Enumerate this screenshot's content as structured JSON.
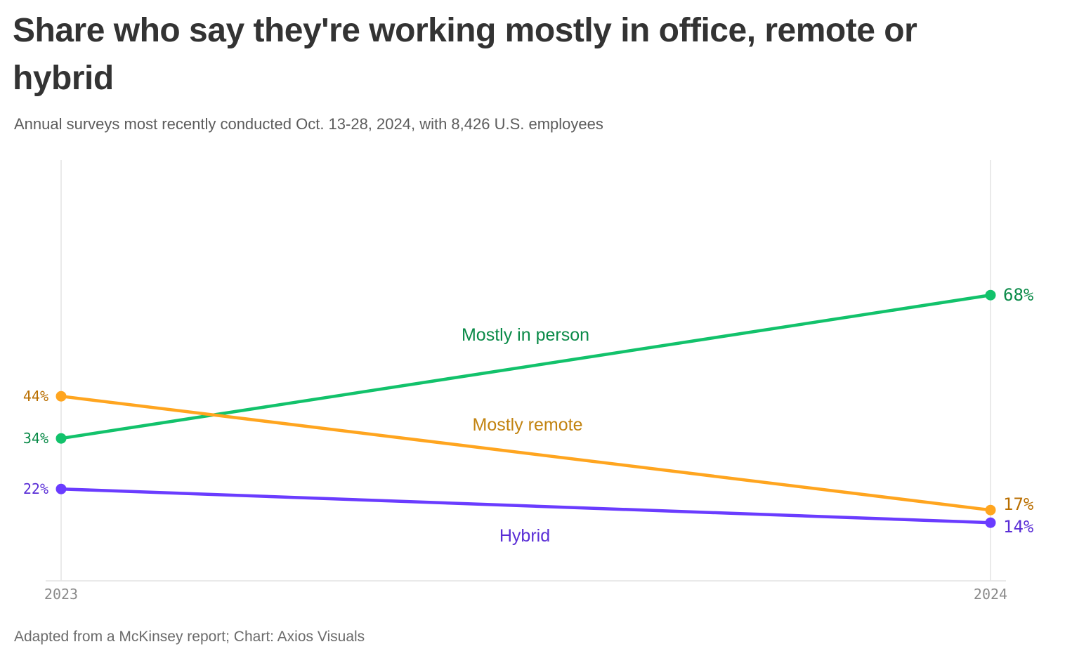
{
  "title": "Share who say they're working mostly in office, remote or hybrid",
  "subtitle": "Annual surveys most recently conducted Oct. 13-28, 2024, with 8,426 U.S. employees",
  "footer": "Adapted from a McKinsey report; Chart: Axios Visuals",
  "chart_data": {
    "type": "line",
    "x": [
      "2023",
      "2024"
    ],
    "ylim": [
      0,
      100
    ],
    "grid": true,
    "series": [
      {
        "name": "Mostly in person",
        "values": [
          34,
          68
        ],
        "value_labels": [
          "34%",
          "68%"
        ],
        "color": "#12c26b",
        "label_color": "#0a8a48"
      },
      {
        "name": "Mostly remote",
        "values": [
          44,
          17
        ],
        "value_labels": [
          "44%",
          "17%"
        ],
        "color": "#ffa51f",
        "label_color": "#b96e00"
      },
      {
        "name": "Hybrid",
        "values": [
          22,
          14
        ],
        "value_labels": [
          "22%",
          "14%"
        ],
        "color": "#6a3cff",
        "label_color": "#5a2ed6"
      }
    ]
  }
}
